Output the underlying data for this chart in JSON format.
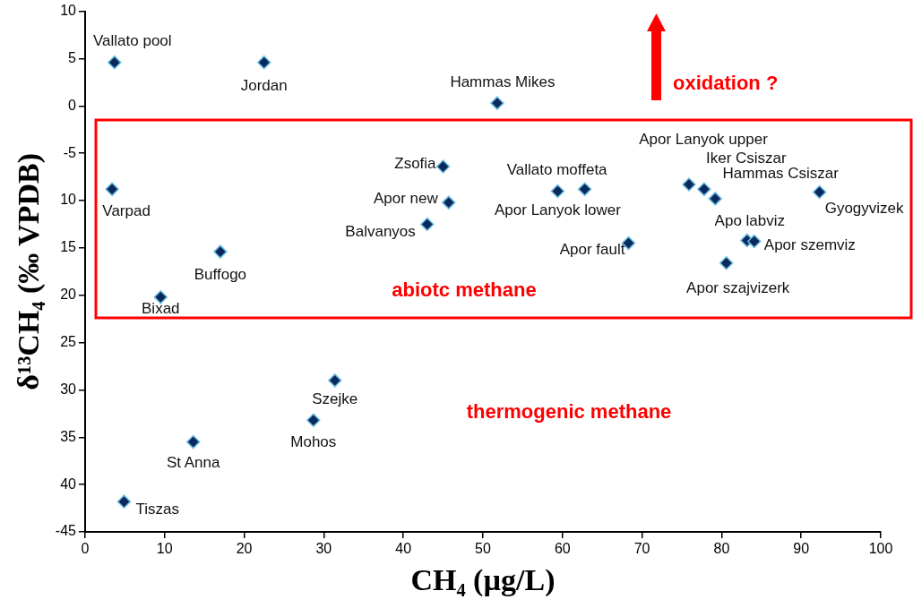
{
  "chart_data": {
    "type": "scatter",
    "xlabel": "CH₄ (µg/L)",
    "ylabel": "δ¹³CH₄ (‰ VPDB)",
    "xlim": [
      0,
      100
    ],
    "xticks": [
      0,
      10,
      20,
      30,
      40,
      50,
      60,
      70,
      80,
      90,
      100
    ],
    "ylim": [
      -45,
      10
    ],
    "yticks": [
      {
        "value": -45,
        "label": "-45"
      },
      {
        "value": -40,
        "label": "40"
      },
      {
        "value": -35,
        "label": "35"
      },
      {
        "value": -30,
        "label": "30"
      },
      {
        "value": -25,
        "label": "25"
      },
      {
        "value": -20,
        "label": "20"
      },
      {
        "value": -15,
        "label": "15"
      },
      {
        "value": -10,
        "label": "10"
      },
      {
        "value": -5,
        "label": "-5"
      },
      0,
      5,
      10
    ],
    "grid": false,
    "legend": false,
    "marker": "diamond",
    "series": [
      {
        "color": "#0a2a5e",
        "x": [
          3.7,
          22.5,
          51.8,
          45,
          45.7,
          43,
          3.4,
          17,
          9.5,
          59.4,
          62.8,
          68.3,
          75.9,
          77.8,
          79.2,
          92.3,
          83.2,
          84.1,
          80.6,
          31.4,
          28.7,
          13.6,
          4.9
        ],
        "values": [
          4.6,
          4.6,
          0.3,
          -6.4,
          -10.2,
          -12.5,
          -8.8,
          -15.4,
          -20.2,
          -9.0,
          -8.8,
          -14.5,
          -8.3,
          -8.8,
          -9.8,
          -9.1,
          -14.2,
          -14.3,
          -16.6,
          -29.0,
          -33.2,
          -35.5,
          -41.8
        ]
      }
    ],
    "annotations": [
      {
        "text": "Vallato pool",
        "x": 3.7,
        "y": 4.6
      },
      {
        "text": "Jordan",
        "x": 22.5,
        "y": 4.6
      },
      {
        "text": "Hammas Mikes",
        "x": 51.8,
        "y": 0.3
      },
      {
        "text": "Zsofia",
        "x": 45,
        "y": -6.4
      },
      {
        "text": "Apor new",
        "x": 45.7,
        "y": -10.2
      },
      {
        "text": "Balvanyos",
        "x": 43,
        "y": -12.5
      },
      {
        "text": "Varpad",
        "x": 3.4,
        "y": -8.8
      },
      {
        "text": "Buffogo",
        "x": 17,
        "y": -15.4
      },
      {
        "text": "Bixad",
        "x": 9.5,
        "y": -20.2
      },
      {
        "text": "Apor Lanyok lower",
        "x": 59.4,
        "y": -9.0
      },
      {
        "text": "Vallato moffeta",
        "x": 62.8,
        "y": -8.8
      },
      {
        "text": "Apor fault",
        "x": 68.3,
        "y": -14.5
      },
      {
        "text": "Apor Lanyok upper",
        "x": 75.9,
        "y": -8.3
      },
      {
        "text": "Iker Csiszar",
        "x": 77.8,
        "y": -8.8
      },
      {
        "text": "Hammas Csiszar",
        "x": 79.2,
        "y": -9.8
      },
      {
        "text": "Gyogyvizek",
        "x": 92.3,
        "y": -9.1
      },
      {
        "text": "Apo labviz",
        "x": 83.2,
        "y": -14.2
      },
      {
        "text": "Apor szemviz",
        "x": 84.1,
        "y": -14.3
      },
      {
        "text": "Apor szajvizerk",
        "x": 80.6,
        "y": -16.6
      },
      {
        "text": "Szejke",
        "x": 31.4,
        "y": -29.0
      },
      {
        "text": "Mohos",
        "x": 28.7,
        "y": -33.2
      },
      {
        "text": "St Anna",
        "x": 13.6,
        "y": -35.5
      },
      {
        "text": "Tiszas",
        "x": 4.9,
        "y": -41.8
      },
      "oxidation ?",
      "abiotc methane",
      "thermogenic methane"
    ]
  }
}
